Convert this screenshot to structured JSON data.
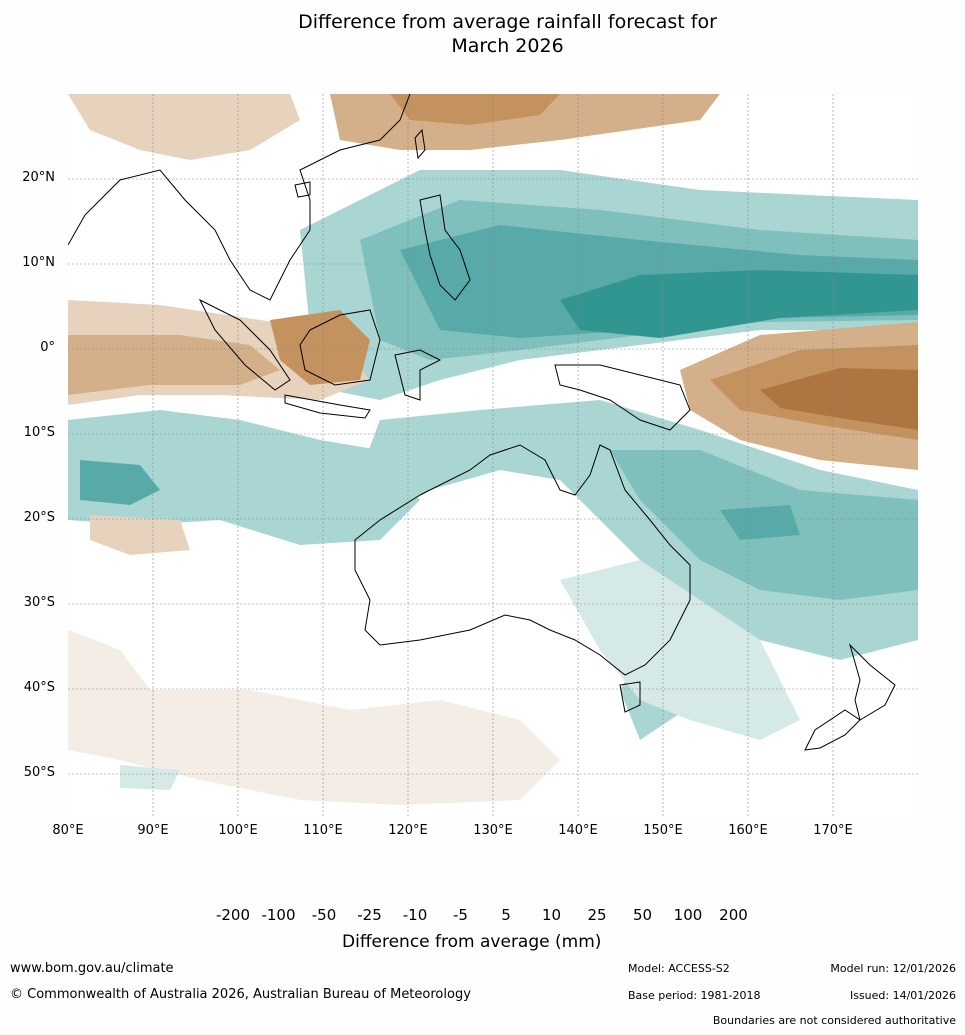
{
  "title_line1": "Difference from average rainfall forecast for",
  "title_line2": "March 2026",
  "lat_labels": [
    "20°N",
    "10°N",
    "0°",
    "10°S",
    "20°S",
    "30°S",
    "40°S",
    "50°S"
  ],
  "lon_labels": [
    "80°E",
    "90°E",
    "100°E",
    "110°E",
    "120°E",
    "130°E",
    "140°E",
    "150°E",
    "160°E",
    "170°E"
  ],
  "colorbar": {
    "ticks": [
      "-200",
      "-100",
      "-50",
      "-25",
      "-10",
      "-5",
      "5",
      "10",
      "25",
      "50",
      "100",
      "200"
    ],
    "colors": [
      "#8f5a2a",
      "#ad7540",
      "#c4925f",
      "#d4b08a",
      "#e6d2bd",
      "#f3ede6",
      "#ffffff",
      "#d5e9e7",
      "#a9d5d2",
      "#7fbfbc",
      "#57aaa8",
      "#31968f",
      "#267a74"
    ],
    "title": "Difference from average (mm)"
  },
  "footer": {
    "url": "www.bom.gov.au/climate",
    "copyright": "© Commonwealth of Australia 2026, Australian Bureau of Meteorology",
    "model": "Model: ACCESS-S2",
    "base_period": "Base period: 1981-2018",
    "model_run": "Model run: 12/01/2026",
    "issued": "Issued: 14/01/2026",
    "boundaries_note": "Boundaries are not considered authoritative"
  }
}
